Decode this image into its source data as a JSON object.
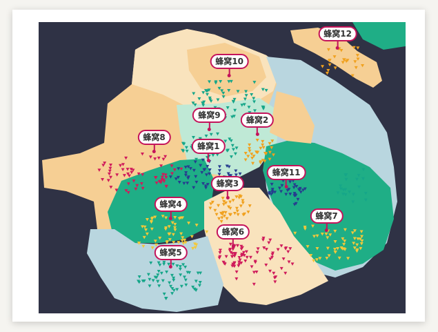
{
  "colors": {
    "background": "#2f3245",
    "land_tan": "#f6cf94",
    "land_cream": "#f9e3bd",
    "land_green": "#1fae86",
    "land_lightblue": "#b9d6df",
    "land_mint": "#bfe9d6",
    "marker_teal": "#16a689",
    "marker_orange": "#f0a11f",
    "marker_red": "#cf1b5b",
    "marker_navy": "#263d8f",
    "marker_yellow": "#f3c83a",
    "pin_border": "#c4135a"
  },
  "map": {
    "clusters": [
      {
        "label": "蜂窝1",
        "point": [
          0.463,
          0.48
        ]
      },
      {
        "label": "蜂窝2",
        "point": [
          0.596,
          0.39
        ]
      },
      {
        "label": "蜂窝3",
        "point": [
          0.515,
          0.61
        ]
      },
      {
        "label": "蜂窝4",
        "point": [
          0.36,
          0.68
        ]
      },
      {
        "label": "蜂窝5",
        "point": [
          0.36,
          0.845
        ]
      },
      {
        "label": "蜂窝6",
        "point": [
          0.53,
          0.775
        ]
      },
      {
        "label": "蜂窝7",
        "point": [
          0.785,
          0.72
        ]
      },
      {
        "label": "蜂窝8",
        "point": [
          0.315,
          0.45
        ]
      },
      {
        "label": "蜂窝9",
        "point": [
          0.465,
          0.375
        ]
      },
      {
        "label": "蜂窝10",
        "point": [
          0.52,
          0.19
        ]
      },
      {
        "label": "蜂窝11",
        "point": [
          0.675,
          0.57
        ]
      },
      {
        "label": "蜂窝12",
        "point": [
          0.815,
          0.095
        ]
      }
    ]
  }
}
